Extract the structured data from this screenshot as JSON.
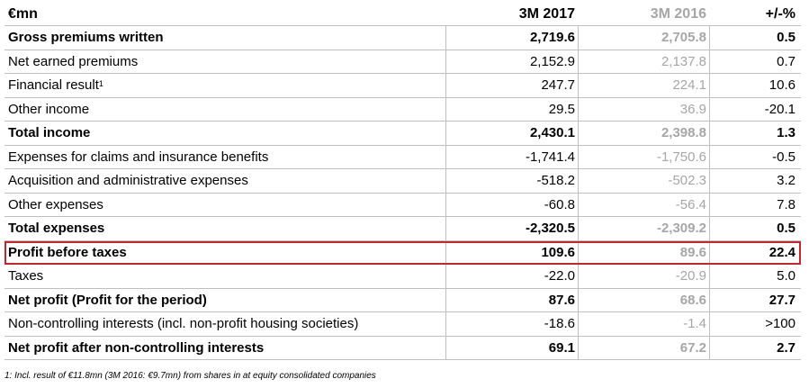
{
  "table": {
    "header": {
      "label": "€mn",
      "col1": "3M 2017",
      "col2": "3M 2016",
      "col3": "+/-%"
    },
    "rows": [
      {
        "label": "Gross premiums written",
        "sup": "",
        "v1": "2,719.6",
        "v2": "2,705.8",
        "v3": "0.5",
        "bold": true
      },
      {
        "label": "Net earned premiums",
        "sup": "",
        "v1": "2,152.9",
        "v2": "2,137.8",
        "v3": "0.7",
        "bold": false
      },
      {
        "label": "Financial result",
        "sup": "1",
        "v1": "247.7",
        "v2": "224.1",
        "v3": "10.6",
        "bold": false
      },
      {
        "label": "Other income",
        "sup": "",
        "v1": "29.5",
        "v2": "36.9",
        "v3": "-20.1",
        "bold": false
      },
      {
        "label": "Total income",
        "sup": "",
        "v1": "2,430.1",
        "v2": "2,398.8",
        "v3": "1.3",
        "bold": true
      },
      {
        "label": "Expenses for claims and insurance benefits",
        "sup": "",
        "v1": "-1,741.4",
        "v2": "-1,750.6",
        "v3": "-0.5",
        "bold": false
      },
      {
        "label": "Acquisition and administrative expenses",
        "sup": "",
        "v1": "-518.2",
        "v2": "-502.3",
        "v3": "3.2",
        "bold": false
      },
      {
        "label": "Other expenses",
        "sup": "",
        "v1": "-60.8",
        "v2": "-56.4",
        "v3": "7.8",
        "bold": false
      },
      {
        "label": "Total expenses",
        "sup": "",
        "v1": "-2,320.5",
        "v2": "-2,309.2",
        "v3": "0.5",
        "bold": true
      },
      {
        "label": "Profit before taxes",
        "sup": "",
        "v1": "109.6",
        "v2": "89.6",
        "v3": "22.4",
        "bold": true
      },
      {
        "label": "Taxes",
        "sup": "",
        "v1": "-22.0",
        "v2": "-20.9",
        "v3": "5.0",
        "bold": false
      },
      {
        "label": "Net profit (Profit for the period)",
        "sup": "",
        "v1": "87.6",
        "v2": "68.6",
        "v3": "27.7",
        "bold": true
      },
      {
        "label": "Non-controlling interests (incl. non-profit housing societies)",
        "sup": "",
        "v1": "-18.6",
        "v2": "-1.4",
        "v3": ">100",
        "bold": false
      },
      {
        "label": "Net profit after non-controlling interests",
        "sup": "",
        "v1": "69.1",
        "v2": "67.2",
        "v3": "2.7",
        "bold": true
      }
    ],
    "highlight_color": "#c0282d"
  },
  "footnote": "1: Incl. result of €11.8mn (3M 2016: €9.7mn) from shares in at equity consolidated companies"
}
